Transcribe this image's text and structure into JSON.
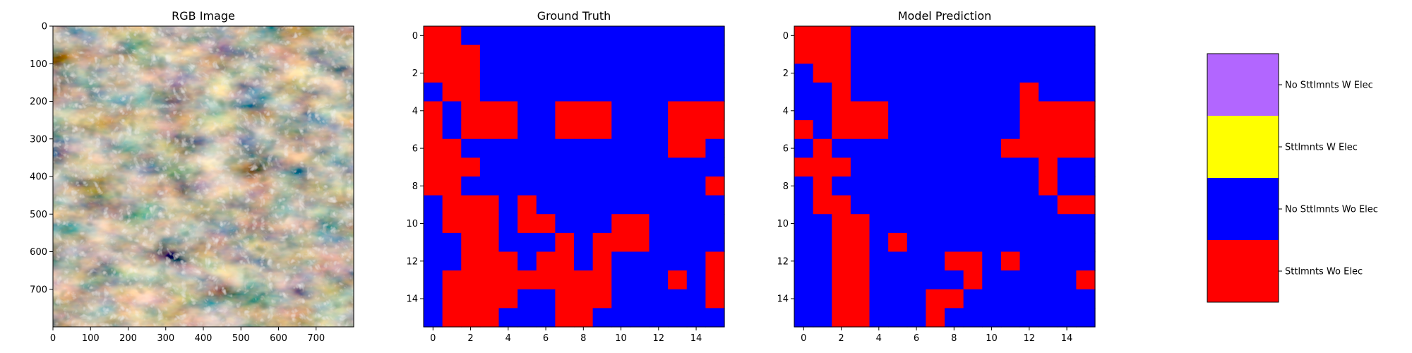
{
  "colors": {
    "settlements_wo_elec": "#ff0000",
    "no_settlements_wo_elec": "#0000ff",
    "settlements_w_elec": "#ffff00",
    "no_settlements_w_elec": "#b266ff"
  },
  "chart_data": [
    {
      "type": "image",
      "title": "RGB Image",
      "xlim": [
        0,
        800
      ],
      "ylim": [
        800,
        0
      ],
      "xticks": [
        0,
        100,
        200,
        300,
        400,
        500,
        600,
        700
      ],
      "yticks": [
        0,
        100,
        200,
        300,
        400,
        500,
        600,
        700
      ]
    },
    {
      "type": "heatmap",
      "title": "Ground Truth",
      "xticks": [
        0,
        2,
        4,
        6,
        8,
        10,
        12,
        14
      ],
      "yticks": [
        0,
        2,
        4,
        6,
        8,
        10,
        12,
        14
      ],
      "class_legend": {
        "1": "Sttlmnts Wo Elec",
        "0": "No Sttlmnts Wo Elec"
      },
      "grid": [
        "1100000000000000",
        "1110000000000000",
        "1110000000000000",
        "0110000000000000",
        "1011100111000111",
        "1011100111000111",
        "1100000000000110",
        "1110000000000000",
        "1100000000000001",
        "0111010000000000",
        "0111011000110000",
        "0011000101110000",
        "0011101101000001",
        "0111111111000101",
        "0111100111000001",
        "0111000110000000"
      ]
    },
    {
      "type": "heatmap",
      "title": "Model Prediction",
      "xticks": [
        0,
        2,
        4,
        6,
        8,
        10,
        12,
        14
      ],
      "yticks": [
        0,
        2,
        4,
        6,
        8,
        10,
        12,
        14
      ],
      "class_legend": {
        "1": "Sttlmnts Wo Elec",
        "0": "No Sttlmnts Wo Elec"
      },
      "grid": [
        "1110000000000000",
        "1110000000000000",
        "0110000000000000",
        "0010000000001000",
        "0011100000001111",
        "1011100000001111",
        "0100000000011111",
        "1110000000000100",
        "0100000000000100",
        "0110000000000011",
        "0011000000000000",
        "0011010000000000",
        "0011000011010000",
        "0011000001000001",
        "0011000110000000",
        "0011000100000000"
      ]
    },
    {
      "type": "legend",
      "entries": [
        {
          "label": "No Sttlmnts W Elec",
          "color": "#b266ff"
        },
        {
          "label": "Sttlmnts W Elec",
          "color": "#ffff00"
        },
        {
          "label": "No Sttlmnts Wo Elec",
          "color": "#0000ff"
        },
        {
          "label": "Sttlmnts Wo Elec",
          "color": "#ff0000"
        }
      ]
    }
  ]
}
